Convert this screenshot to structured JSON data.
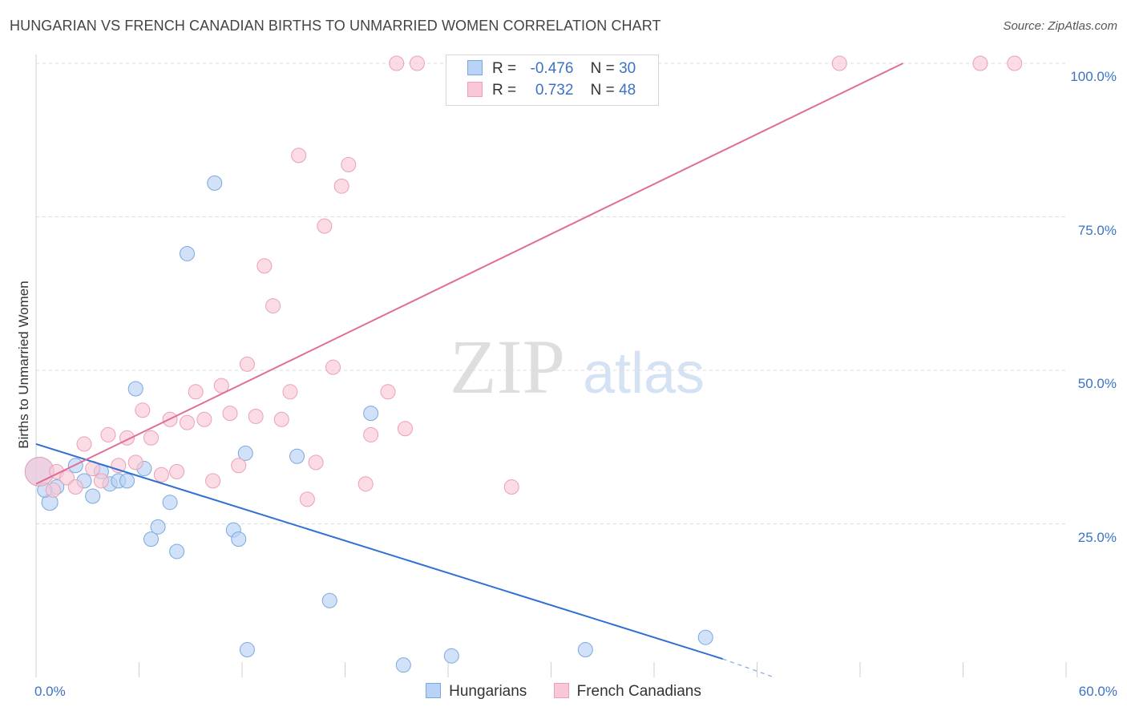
{
  "header": {
    "title": "HUNGARIAN VS FRENCH CANADIAN BIRTHS TO UNMARRIED WOMEN CORRELATION CHART",
    "source": "Source: ZipAtlas.com"
  },
  "watermark": {
    "zip": "ZIP",
    "atlas": "atlas"
  },
  "legend": {
    "rows": [
      {
        "r_label": "R =",
        "r_value": "-0.476",
        "n_label": "N =",
        "n_value": "30"
      },
      {
        "r_label": "R =",
        "r_value": "0.732",
        "n_label": "N =",
        "n_value": "48"
      }
    ]
  },
  "colors": {
    "hungarians_fill": "#b8d3f5",
    "hungarians_stroke": "#7aa8e0",
    "hungarians_line": "#2f6fd1",
    "french_fill": "#f9c7d6",
    "french_stroke": "#eba0b8",
    "french_line": "#e06e94",
    "tick_text": "#3b73c4",
    "grid": "#dddddd"
  },
  "chart_data": {
    "type": "scatter",
    "title": "HUNGARIAN VS FRENCH CANADIAN BIRTHS TO UNMARRIED WOMEN CORRELATION CHART",
    "ylabel": "Births to Unmarried Women",
    "xlim": [
      0,
      60
    ],
    "ylim": [
      0,
      100
    ],
    "x_tick_labels": [
      "0.0%",
      "60.0%"
    ],
    "y_ticks": [
      25,
      50,
      75,
      100
    ],
    "y_tick_labels": [
      "25.0%",
      "50.0%",
      "75.0%",
      "100.0%"
    ],
    "grid": true,
    "legend_position": "top-center",
    "series": [
      {
        "name": "Hungarians",
        "r": -0.476,
        "n": 30,
        "trend": {
          "x": [
            0,
            40.0
          ],
          "y": [
            38.0,
            3.0
          ],
          "dashed_to": [
            43.0,
            0.0
          ]
        },
        "points": [
          [
            0.2,
            33.5,
            18
          ],
          [
            0.8,
            28.5,
            10
          ],
          [
            1.2,
            31.0,
            9
          ],
          [
            2.3,
            34.5,
            9
          ],
          [
            2.8,
            32.0,
            9
          ],
          [
            3.3,
            29.5,
            9
          ],
          [
            3.8,
            33.5,
            9
          ],
          [
            4.3,
            31.5,
            9
          ],
          [
            4.8,
            32.0,
            9
          ],
          [
            5.3,
            32.0,
            9
          ],
          [
            5.8,
            47.0,
            9
          ],
          [
            6.3,
            34.0,
            9
          ],
          [
            6.7,
            22.5,
            9
          ],
          [
            7.1,
            24.5,
            9
          ],
          [
            7.8,
            28.5,
            9
          ],
          [
            8.2,
            20.5,
            9
          ],
          [
            8.8,
            69.0,
            9
          ],
          [
            10.4,
            80.5,
            9
          ],
          [
            11.5,
            24.0,
            9
          ],
          [
            11.8,
            22.5,
            9
          ],
          [
            12.2,
            36.5,
            9
          ],
          [
            12.3,
            4.5,
            9
          ],
          [
            15.2,
            36.0,
            9
          ],
          [
            17.1,
            12.5,
            9
          ],
          [
            19.5,
            43.0,
            9
          ],
          [
            21.4,
            2.0,
            9
          ],
          [
            24.2,
            3.5,
            9
          ],
          [
            32.0,
            4.5,
            9
          ],
          [
            39.0,
            6.5,
            9
          ],
          [
            0.5,
            30.5,
            9
          ]
        ]
      },
      {
        "name": "French Canadians",
        "r": 0.732,
        "n": 48,
        "trend": {
          "x": [
            0,
            50.5
          ],
          "y": [
            31.5,
            100.0
          ]
        },
        "points": [
          [
            0.2,
            33.5,
            18
          ],
          [
            1.2,
            33.5,
            9
          ],
          [
            1.8,
            32.5,
            9
          ],
          [
            2.3,
            31.0,
            9
          ],
          [
            2.8,
            38.0,
            9
          ],
          [
            3.3,
            34.0,
            9
          ],
          [
            3.8,
            32.0,
            9
          ],
          [
            4.2,
            39.5,
            9
          ],
          [
            4.8,
            34.5,
            9
          ],
          [
            5.3,
            39.0,
            9
          ],
          [
            5.8,
            35.0,
            9
          ],
          [
            6.2,
            43.5,
            9
          ],
          [
            6.7,
            39.0,
            9
          ],
          [
            7.3,
            33.0,
            9
          ],
          [
            7.8,
            42.0,
            9
          ],
          [
            8.2,
            33.5,
            9
          ],
          [
            8.8,
            41.5,
            9
          ],
          [
            9.3,
            46.5,
            9
          ],
          [
            9.8,
            42.0,
            9
          ],
          [
            10.3,
            32.0,
            9
          ],
          [
            10.8,
            47.5,
            9
          ],
          [
            11.3,
            43.0,
            9
          ],
          [
            11.8,
            34.5,
            9
          ],
          [
            12.3,
            51.0,
            9
          ],
          [
            12.8,
            42.5,
            9
          ],
          [
            13.3,
            67.0,
            9
          ],
          [
            13.8,
            60.5,
            9
          ],
          [
            14.3,
            42.0,
            9
          ],
          [
            14.8,
            46.5,
            9
          ],
          [
            15.3,
            85.0,
            9
          ],
          [
            15.8,
            29.0,
            9
          ],
          [
            16.3,
            35.0,
            9
          ],
          [
            16.8,
            73.5,
            9
          ],
          [
            17.3,
            50.5,
            9
          ],
          [
            17.8,
            80.0,
            9
          ],
          [
            18.2,
            83.5,
            9
          ],
          [
            19.2,
            31.5,
            9
          ],
          [
            19.5,
            39.5,
            9
          ],
          [
            20.5,
            46.5,
            9
          ],
          [
            21.0,
            100.0,
            9
          ],
          [
            21.5,
            40.5,
            9
          ],
          [
            22.2,
            100.0,
            9
          ],
          [
            27.7,
            31.0,
            9
          ],
          [
            32.0,
            100.0,
            9
          ],
          [
            46.8,
            100.0,
            9
          ],
          [
            55.0,
            100.0,
            9
          ],
          [
            57.0,
            100.0,
            9
          ],
          [
            1.0,
            30.5,
            9
          ]
        ]
      }
    ]
  },
  "bottom_legend": {
    "items": [
      "Hungarians",
      "French Canadians"
    ]
  }
}
